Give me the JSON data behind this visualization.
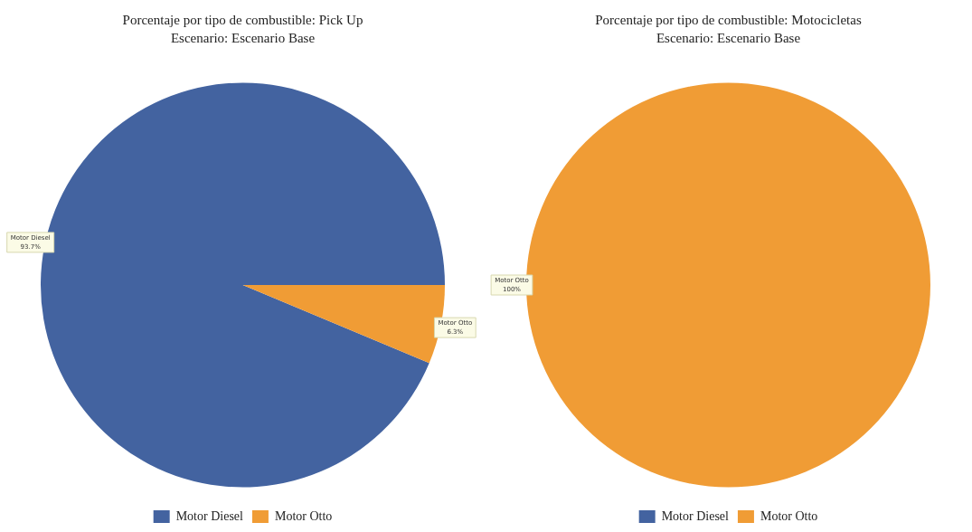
{
  "chart_data": [
    {
      "type": "pie",
      "title": "Porcentaje por tipo de combustible: Pick Up",
      "subtitle": "Escenario: Escenario Base",
      "categories": [
        "Motor Diesel",
        "Motor Otto"
      ],
      "values": [
        93.7,
        6.3
      ],
      "colors": [
        "#4363a0",
        "#f09c35"
      ],
      "value_labels": [
        "93.7%",
        "6.3%"
      ],
      "legend": "bottom"
    },
    {
      "type": "pie",
      "title": "Porcentaje por tipo de combustible: Motocicletas",
      "subtitle": "Escenario: Escenario Base",
      "categories": [
        "Motor Diesel",
        "Motor Otto"
      ],
      "values": [
        0,
        100
      ],
      "colors": [
        "#4363a0",
        "#f09c35"
      ],
      "value_labels": [
        null,
        "100%"
      ],
      "legend": "bottom"
    }
  ]
}
